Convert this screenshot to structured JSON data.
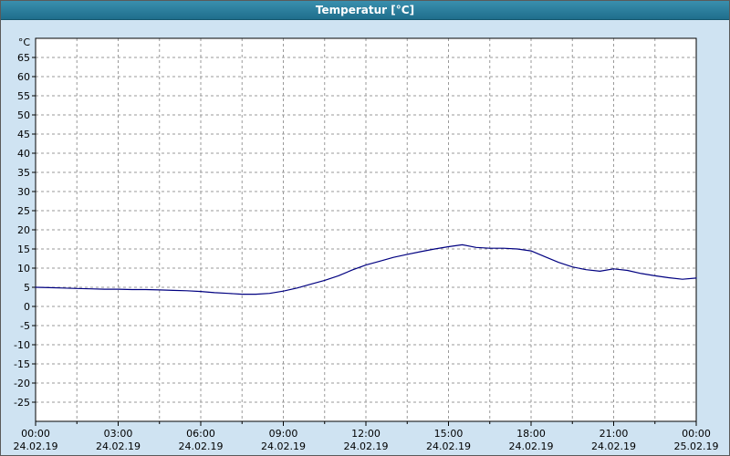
{
  "window": {
    "title": "Temperatur [°C]"
  },
  "colors": {
    "titlebar": "#2a7d9c",
    "background": "#cfe3f2",
    "plot_background": "#ffffff",
    "grid": "#9a9a9a",
    "axis": "#000000",
    "line": "#000080"
  },
  "chart_data": {
    "type": "line",
    "title": "Temperatur [°C]",
    "ylabel": "°C",
    "xlabel": "",
    "ylim": [
      -30,
      70
    ],
    "xlim_hours": [
      0,
      24
    ],
    "grid": true,
    "y_ticks": [
      65,
      60,
      55,
      50,
      45,
      40,
      35,
      30,
      25,
      20,
      15,
      10,
      5,
      0,
      -5,
      -10,
      -15,
      -20,
      -25
    ],
    "x_ticks": [
      {
        "hour": 0,
        "time": "00:00",
        "date": "24.02.19"
      },
      {
        "hour": 3,
        "time": "03:00",
        "date": "24.02.19"
      },
      {
        "hour": 6,
        "time": "06:00",
        "date": "24.02.19"
      },
      {
        "hour": 9,
        "time": "09:00",
        "date": "24.02.19"
      },
      {
        "hour": 12,
        "time": "12:00",
        "date": "24.02.19"
      },
      {
        "hour": 15,
        "time": "15:00",
        "date": "24.02.19"
      },
      {
        "hour": 18,
        "time": "18:00",
        "date": "24.02.19"
      },
      {
        "hour": 21,
        "time": "21:00",
        "date": "24.02.19"
      },
      {
        "hour": 24,
        "time": "00:00",
        "date": "25.02.19"
      }
    ],
    "minor_x_step_hours": 1.5,
    "series": [
      {
        "name": "Temperatur",
        "color": "#000080",
        "x_hours": [
          0,
          0.5,
          1,
          1.5,
          2,
          2.5,
          3,
          3.5,
          4,
          4.5,
          5,
          5.5,
          6,
          6.5,
          7,
          7.5,
          8,
          8.5,
          9,
          9.5,
          10,
          10.5,
          11,
          11.5,
          12,
          12.5,
          13,
          13.5,
          14,
          14.5,
          15,
          15.5,
          16,
          16.5,
          17,
          17.5,
          18,
          18.5,
          19,
          19.5,
          20,
          20.5,
          21,
          21.5,
          22,
          22.5,
          23,
          23.5,
          24
        ],
        "y_values": [
          5.0,
          4.9,
          4.8,
          4.7,
          4.6,
          4.5,
          4.5,
          4.4,
          4.4,
          4.3,
          4.2,
          4.1,
          3.9,
          3.6,
          3.4,
          3.2,
          3.2,
          3.4,
          4.0,
          4.8,
          5.8,
          6.8,
          8.0,
          9.5,
          10.8,
          11.8,
          12.8,
          13.6,
          14.3,
          15.0,
          15.6,
          16.1,
          15.4,
          15.2,
          15.2,
          15.0,
          14.5,
          13.0,
          11.5,
          10.3,
          9.6,
          9.2,
          9.8,
          9.4,
          8.6,
          8.0,
          7.5,
          7.1,
          7.4
        ]
      }
    ]
  }
}
